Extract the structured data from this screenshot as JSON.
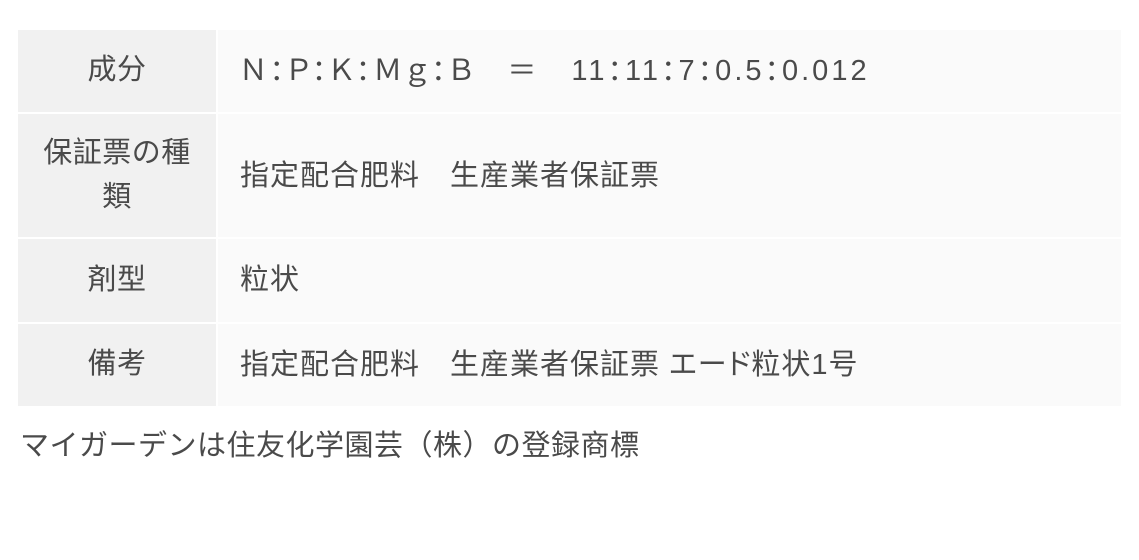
{
  "table": {
    "rows": [
      {
        "label": "成分",
        "value": "Ｎ：Ｐ：Ｋ：Ｍｇ：Ｂ　＝　11：11：7：0.5：0.012",
        "wide": true
      },
      {
        "label": "保証票の種類",
        "value": "指定配合肥料　生産業者保証票"
      },
      {
        "label": "剤型",
        "value": "粒状"
      },
      {
        "label": "備考",
        "value": "指定配合肥料　生産業者保証票 エード粒状1号"
      }
    ]
  },
  "footnote": "マイガーデンは住友化学園芸（株）の登録商標"
}
